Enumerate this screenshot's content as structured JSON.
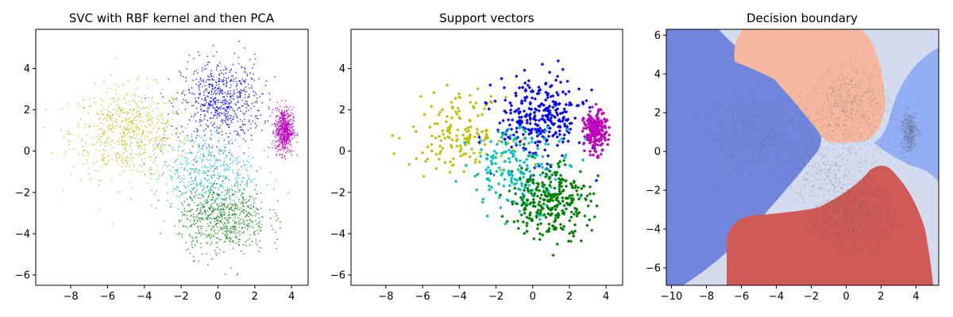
{
  "chart_data": [
    {
      "type": "scatter",
      "title": "SVC with RBF kernel and then PCA",
      "xlabel": "",
      "ylabel": "",
      "xlim": [
        -9.9,
        4.9
      ],
      "ylim": [
        -6.5,
        5.9
      ],
      "xticks": [
        -8,
        -6,
        -4,
        -2,
        0,
        2,
        4
      ],
      "yticks": [
        -6,
        -4,
        -2,
        0,
        2,
        4
      ],
      "xtick_labels": [
        "−8",
        "−6",
        "−4",
        "−2",
        "0",
        "2",
        "4"
      ],
      "ytick_labels": [
        "−6",
        "−4",
        "−2",
        "0",
        "2",
        "4"
      ],
      "grid": false,
      "series": [
        {
          "color": "#bfbf00",
          "center": [
            -4.8,
            0.9
          ],
          "spread": [
            1.6,
            1.1
          ],
          "count": 650
        },
        {
          "color": "#0000ff",
          "center": [
            0.2,
            2.4
          ],
          "spread": [
            1.1,
            1.0
          ],
          "count": 650
        },
        {
          "color": "#bf00bf",
          "center": [
            3.6,
            1.0
          ],
          "spread": [
            0.25,
            0.55
          ],
          "count": 550
        },
        {
          "color": "#00bfbf",
          "center": [
            -0.8,
            -1.0
          ],
          "spread": [
            1.4,
            1.0
          ],
          "count": 450
        },
        {
          "color": "#008000",
          "center": [
            0.3,
            -3.2
          ],
          "spread": [
            1.2,
            0.9
          ],
          "count": 650
        }
      ]
    },
    {
      "type": "scatter",
      "title": "Support vectors",
      "xlabel": "",
      "ylabel": "",
      "xlim": [
        -9.9,
        4.9
      ],
      "ylim": [
        -6.5,
        5.9
      ],
      "xticks": [
        -8,
        -6,
        -4,
        -2,
        0,
        2,
        4
      ],
      "yticks": [
        -6,
        -4,
        -2,
        0,
        2,
        4
      ],
      "xtick_labels": [
        "−8",
        "−6",
        "−4",
        "−2",
        "0",
        "2",
        "4"
      ],
      "ytick_labels": [
        "−6",
        "−4",
        "−2",
        "0",
        "2",
        "4"
      ],
      "grid": false,
      "marker": "diamond",
      "series": [
        {
          "color": "#bfbf00",
          "center": [
            -4.0,
            0.9
          ],
          "spread": [
            1.3,
            0.9
          ],
          "count": 160
        },
        {
          "color": "#0000ff",
          "center": [
            0.4,
            1.6
          ],
          "spread": [
            1.2,
            1.0
          ],
          "count": 300
        },
        {
          "color": "#bf00bf",
          "center": [
            3.4,
            0.9
          ],
          "spread": [
            0.3,
            0.5
          ],
          "count": 200
        },
        {
          "color": "#00bfbf",
          "center": [
            -0.6,
            -0.8
          ],
          "spread": [
            1.4,
            1.0
          ],
          "count": 200
        },
        {
          "color": "#008000",
          "center": [
            0.9,
            -2.4
          ],
          "spread": [
            1.1,
            0.9
          ],
          "count": 300
        }
      ]
    },
    {
      "type": "scatter",
      "title": "Decision boundary",
      "xlabel": "",
      "ylabel": "",
      "xlim": [
        -10.3,
        5.3
      ],
      "ylim": [
        -6.9,
        6.3
      ],
      "xticks": [
        -10,
        -8,
        -6,
        -4,
        -2,
        0,
        2,
        4
      ],
      "yticks": [
        -6,
        -4,
        -2,
        0,
        2,
        4,
        6
      ],
      "xtick_labels": [
        "−10",
        "−8",
        "−6",
        "−4",
        "−2",
        "0",
        "2",
        "4"
      ],
      "ytick_labels": [
        "−6",
        "−4",
        "−2",
        "0",
        "2",
        "4",
        "6"
      ],
      "grid": false,
      "regions": [
        {
          "label": "left",
          "color": "#6f86dc"
        },
        {
          "label": "background",
          "color": "#d3dcef"
        },
        {
          "label": "top",
          "color": "#f5b89e"
        },
        {
          "label": "right",
          "color": "#93aef5"
        },
        {
          "label": "bottom",
          "color": "#cf5a56"
        }
      ],
      "colors": {
        "overlay_points": "#555555"
      }
    }
  ]
}
